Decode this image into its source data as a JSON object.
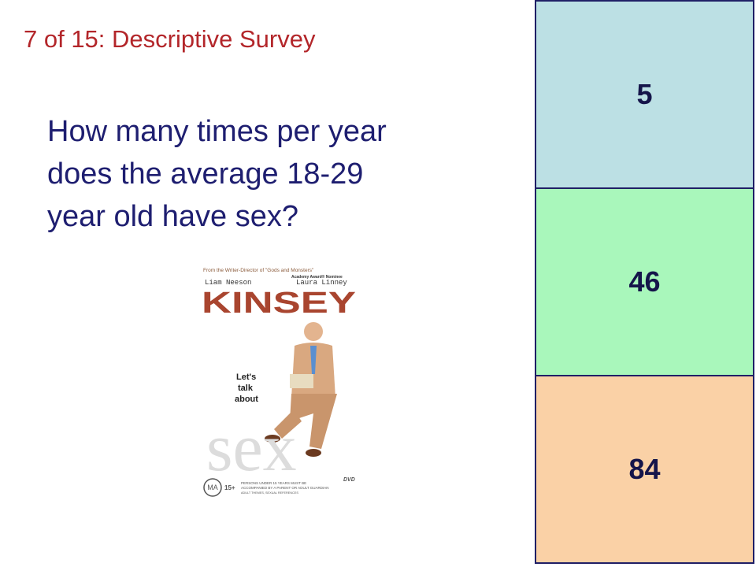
{
  "header": {
    "title": "7 of 15: Descriptive Survey"
  },
  "question": {
    "lines": [
      "How many times per year",
      "does the average 18-29",
      "year old have sex?"
    ]
  },
  "poster": {
    "tagline": "From the Writer-Director of \"Gods and Monsters\"",
    "actor_1": "Liam Neeson",
    "actor_2": "Laura Linney",
    "award": "Academy Award® Nominee",
    "movie_title": "KINSEY",
    "slogan": [
      "Let's",
      "talk",
      "about"
    ],
    "big_word": "sex",
    "rating": "MA",
    "rating_age": "15+",
    "rating_notes": [
      "PERSONS UNDER 15 YEARS MUST BE",
      "ACCOMPANIED BY A PARENT OR ADULT GUARDIAN",
      "ADULT THEMES, SEXUAL REFERENCES"
    ],
    "format": "DVD"
  },
  "answers": [
    {
      "label": "5"
    },
    {
      "label": "46"
    },
    {
      "label": "84"
    }
  ]
}
